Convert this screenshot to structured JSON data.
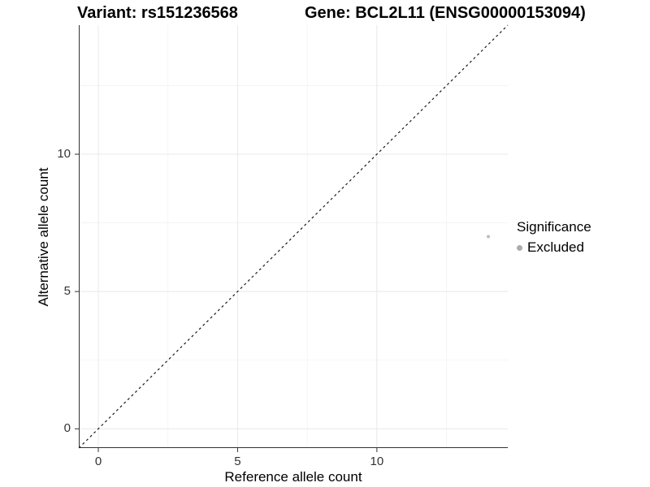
{
  "titles": {
    "left": "Variant: rs151236568",
    "right": "Gene: BCL2L11 (ENSG00000153094)"
  },
  "axes": {
    "x_label": "Reference allele count",
    "y_label": "Alternative allele count"
  },
  "legend": {
    "title": "Significance",
    "position": "right",
    "items": [
      {
        "label": "Excluded",
        "color": "#ababab"
      }
    ]
  },
  "chart_data": {
    "type": "scatter",
    "title_left": "Variant: rs151236568",
    "title_right": "Gene: BCL2L11 (ENSG00000153094)",
    "xlabel": "Reference allele count",
    "ylabel": "Alternative allele count",
    "xlim": [
      -0.7,
      14.7
    ],
    "ylim": [
      -0.7,
      14.7
    ],
    "x_ticks": [
      0,
      5,
      10
    ],
    "y_ticks": [
      0,
      5,
      10
    ],
    "x_minor_gridlines": [
      2.5,
      7.5,
      12.5
    ],
    "y_minor_gridlines": [
      2.5,
      7.5,
      12.5
    ],
    "grid": "on",
    "series": [
      {
        "name": "Excluded",
        "points": [
          {
            "x": 14,
            "y": 7
          }
        ],
        "color": "#bdbdbd",
        "marker": "circle",
        "marker_radius": 2
      }
    ],
    "identity_line": {
      "style": "dashed",
      "slope": 1,
      "intercept": 0,
      "color": "#1a1a1a"
    },
    "colors": {
      "panel_background": "#ffffff",
      "grid_major": "#e8e8e8",
      "grid_minor": "#f2f2f2",
      "axis_line": "#333333",
      "tick_label": "#333333"
    }
  }
}
